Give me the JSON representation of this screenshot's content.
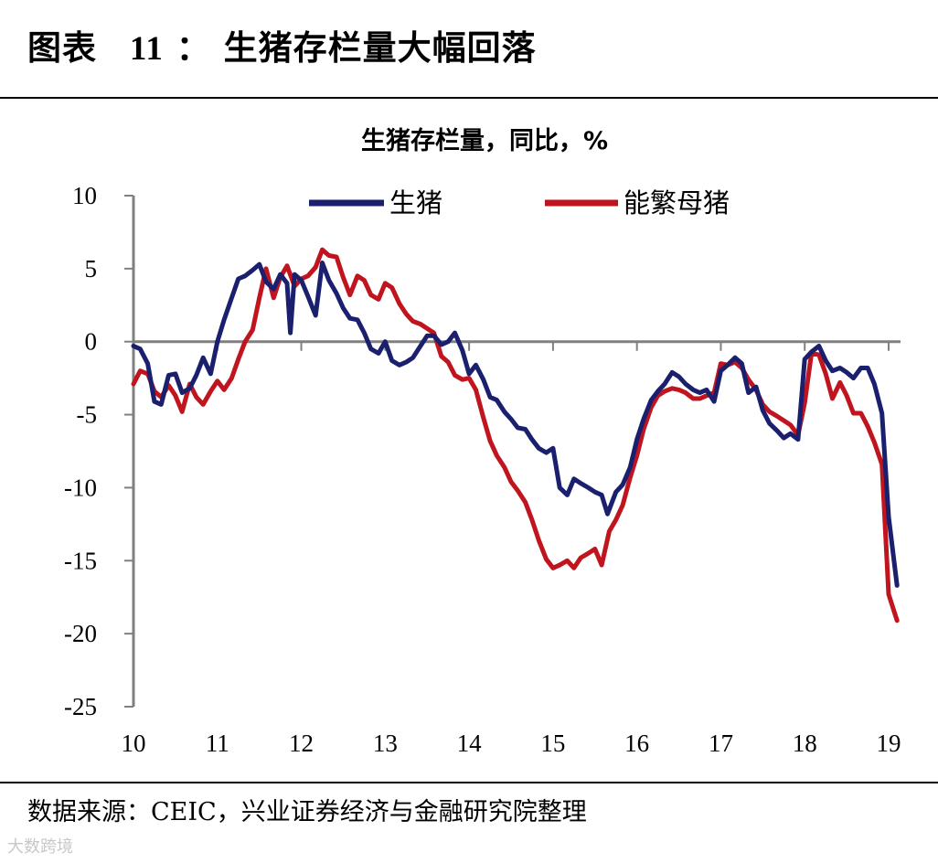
{
  "header": {
    "title_prefix": "图表",
    "title_number": "11",
    "title_sep": "：",
    "title_text": "生猪存栏量大幅回落"
  },
  "footer": {
    "source": "数据来源：CEIC，兴业证券经济与金融研究院整理",
    "watermark": "大数跨境"
  },
  "chart_data": {
    "type": "line",
    "title": "生猪存栏量，同比，%",
    "xlabel": "",
    "ylabel": "",
    "ylim": [
      -25,
      10
    ],
    "yticks": [
      10,
      5,
      0,
      -5,
      -10,
      -15,
      -20,
      -25
    ],
    "xlim": [
      10,
      19.1
    ],
    "xticks": [
      10,
      11,
      12,
      13,
      14,
      15,
      16,
      17,
      18,
      19
    ],
    "xtick_labels": [
      "10",
      "11",
      "12",
      "13",
      "14",
      "15",
      "16",
      "17",
      "18",
      "19"
    ],
    "legend": {
      "position": "top"
    },
    "series": [
      {
        "name": "生猪",
        "color": "#1a1f6e",
        "points": [
          [
            10.0,
            -0.3
          ],
          [
            10.08,
            -0.5
          ],
          [
            10.17,
            -1.5
          ],
          [
            10.25,
            -4.1
          ],
          [
            10.33,
            -4.3
          ],
          [
            10.42,
            -2.3
          ],
          [
            10.5,
            -2.2
          ],
          [
            10.58,
            -3.5
          ],
          [
            10.67,
            -3.2
          ],
          [
            10.75,
            -2.3
          ],
          [
            10.83,
            -1.1
          ],
          [
            10.92,
            -2.2
          ],
          [
            11.0,
            0.0
          ],
          [
            11.08,
            1.5
          ],
          [
            11.17,
            3.0
          ],
          [
            11.25,
            4.3
          ],
          [
            11.33,
            4.5
          ],
          [
            11.42,
            4.9
          ],
          [
            11.5,
            5.3
          ],
          [
            11.58,
            4.1
          ],
          [
            11.67,
            3.6
          ],
          [
            11.75,
            4.6
          ],
          [
            11.83,
            4.0
          ],
          [
            11.87,
            0.6
          ],
          [
            11.92,
            4.6
          ],
          [
            12.0,
            4.2
          ],
          [
            12.08,
            3.1
          ],
          [
            12.17,
            1.8
          ],
          [
            12.25,
            5.4
          ],
          [
            12.33,
            4.2
          ],
          [
            12.42,
            3.3
          ],
          [
            12.5,
            2.3
          ],
          [
            12.58,
            1.6
          ],
          [
            12.67,
            1.5
          ],
          [
            12.75,
            0.6
          ],
          [
            12.83,
            -0.5
          ],
          [
            12.92,
            -0.8
          ],
          [
            13.0,
            0.0
          ],
          [
            13.08,
            -1.3
          ],
          [
            13.17,
            -1.6
          ],
          [
            13.25,
            -1.4
          ],
          [
            13.33,
            -1.1
          ],
          [
            13.42,
            -0.3
          ],
          [
            13.5,
            0.4
          ],
          [
            13.58,
            0.4
          ],
          [
            13.67,
            -0.2
          ],
          [
            13.75,
            0.0
          ],
          [
            13.83,
            0.6
          ],
          [
            13.92,
            -0.6
          ],
          [
            14.0,
            -2.2
          ],
          [
            14.08,
            -1.6
          ],
          [
            14.17,
            -2.6
          ],
          [
            14.25,
            -3.8
          ],
          [
            14.33,
            -4.0
          ],
          [
            14.42,
            -4.8
          ],
          [
            14.5,
            -5.3
          ],
          [
            14.58,
            -5.9
          ],
          [
            14.67,
            -6.0
          ],
          [
            14.75,
            -6.7
          ],
          [
            14.83,
            -7.3
          ],
          [
            14.92,
            -7.6
          ],
          [
            15.0,
            -7.3
          ],
          [
            15.08,
            -10.0
          ],
          [
            15.17,
            -10.5
          ],
          [
            15.25,
            -9.4
          ],
          [
            15.33,
            -9.7
          ],
          [
            15.42,
            -10.0
          ],
          [
            15.5,
            -10.3
          ],
          [
            15.58,
            -10.5
          ],
          [
            15.65,
            -11.8
          ],
          [
            15.75,
            -10.3
          ],
          [
            15.83,
            -9.8
          ],
          [
            15.92,
            -8.6
          ],
          [
            16.0,
            -6.7
          ],
          [
            16.08,
            -5.3
          ],
          [
            16.17,
            -4.0
          ],
          [
            16.25,
            -3.4
          ],
          [
            16.33,
            -2.9
          ],
          [
            16.42,
            -2.1
          ],
          [
            16.5,
            -2.4
          ],
          [
            16.58,
            -2.9
          ],
          [
            16.67,
            -3.3
          ],
          [
            16.75,
            -3.5
          ],
          [
            16.83,
            -3.3
          ],
          [
            16.92,
            -4.1
          ],
          [
            17.0,
            -2.0
          ],
          [
            17.08,
            -1.6
          ],
          [
            17.17,
            -1.1
          ],
          [
            17.25,
            -1.5
          ],
          [
            17.33,
            -3.5
          ],
          [
            17.42,
            -3.1
          ],
          [
            17.5,
            -4.7
          ],
          [
            17.58,
            -5.6
          ],
          [
            17.67,
            -6.1
          ],
          [
            17.75,
            -6.6
          ],
          [
            17.83,
            -6.3
          ],
          [
            17.92,
            -6.7
          ],
          [
            18.0,
            -1.2
          ],
          [
            18.08,
            -0.7
          ],
          [
            18.17,
            -0.3
          ],
          [
            18.25,
            -1.3
          ],
          [
            18.33,
            -2.0
          ],
          [
            18.42,
            -1.8
          ],
          [
            18.5,
            -2.1
          ],
          [
            18.58,
            -2.5
          ],
          [
            18.67,
            -1.8
          ],
          [
            18.75,
            -1.8
          ],
          [
            18.83,
            -2.9
          ],
          [
            18.92,
            -4.9
          ],
          [
            19.0,
            -12.0
          ],
          [
            19.1,
            -16.7
          ]
        ]
      },
      {
        "name": "能繁母猪",
        "color": "#c0141f",
        "points": [
          [
            10.0,
            -2.9
          ],
          [
            10.08,
            -2.0
          ],
          [
            10.17,
            -2.2
          ],
          [
            10.25,
            -3.4
          ],
          [
            10.33,
            -3.8
          ],
          [
            10.42,
            -3.0
          ],
          [
            10.5,
            -3.7
          ],
          [
            10.58,
            -4.8
          ],
          [
            10.67,
            -2.9
          ],
          [
            10.75,
            -3.8
          ],
          [
            10.83,
            -4.3
          ],
          [
            10.92,
            -3.4
          ],
          [
            11.0,
            -2.7
          ],
          [
            11.08,
            -3.3
          ],
          [
            11.17,
            -2.5
          ],
          [
            11.25,
            -1.2
          ],
          [
            11.33,
            0.0
          ],
          [
            11.42,
            0.8
          ],
          [
            11.5,
            3.0
          ],
          [
            11.58,
            5.0
          ],
          [
            11.67,
            3.0
          ],
          [
            11.75,
            4.4
          ],
          [
            11.83,
            5.2
          ],
          [
            11.92,
            3.8
          ],
          [
            12.0,
            4.3
          ],
          [
            12.08,
            4.5
          ],
          [
            12.17,
            5.1
          ],
          [
            12.25,
            6.3
          ],
          [
            12.33,
            5.9
          ],
          [
            12.42,
            5.8
          ],
          [
            12.5,
            4.4
          ],
          [
            12.58,
            3.2
          ],
          [
            12.67,
            4.5
          ],
          [
            12.75,
            4.2
          ],
          [
            12.83,
            3.2
          ],
          [
            12.92,
            2.9
          ],
          [
            13.0,
            4.0
          ],
          [
            13.08,
            3.7
          ],
          [
            13.17,
            2.6
          ],
          [
            13.25,
            1.9
          ],
          [
            13.33,
            1.4
          ],
          [
            13.42,
            1.2
          ],
          [
            13.5,
            0.9
          ],
          [
            13.58,
            0.6
          ],
          [
            13.67,
            -1.0
          ],
          [
            13.75,
            -1.4
          ],
          [
            13.83,
            -2.3
          ],
          [
            13.92,
            -2.6
          ],
          [
            14.0,
            -2.5
          ],
          [
            14.08,
            -3.3
          ],
          [
            14.17,
            -5.2
          ],
          [
            14.25,
            -6.8
          ],
          [
            14.33,
            -7.8
          ],
          [
            14.42,
            -8.6
          ],
          [
            14.5,
            -9.6
          ],
          [
            14.58,
            -10.2
          ],
          [
            14.67,
            -11.0
          ],
          [
            14.75,
            -12.2
          ],
          [
            14.83,
            -13.6
          ],
          [
            14.92,
            -14.9
          ],
          [
            15.0,
            -15.5
          ],
          [
            15.08,
            -15.3
          ],
          [
            15.17,
            -15.0
          ],
          [
            15.25,
            -15.5
          ],
          [
            15.33,
            -14.8
          ],
          [
            15.42,
            -14.5
          ],
          [
            15.5,
            -14.2
          ],
          [
            15.58,
            -15.3
          ],
          [
            15.67,
            -13.0
          ],
          [
            15.75,
            -12.2
          ],
          [
            15.83,
            -11.2
          ],
          [
            15.92,
            -9.3
          ],
          [
            16.0,
            -7.8
          ],
          [
            16.08,
            -6.0
          ],
          [
            16.17,
            -4.5
          ],
          [
            16.25,
            -3.7
          ],
          [
            16.33,
            -3.4
          ],
          [
            16.42,
            -3.2
          ],
          [
            16.5,
            -3.3
          ],
          [
            16.58,
            -3.5
          ],
          [
            16.67,
            -3.9
          ],
          [
            16.75,
            -3.9
          ],
          [
            16.83,
            -3.7
          ],
          [
            16.92,
            -3.5
          ],
          [
            17.0,
            -1.5
          ],
          [
            17.08,
            -1.6
          ],
          [
            17.17,
            -1.4
          ],
          [
            17.25,
            -1.8
          ],
          [
            17.33,
            -2.6
          ],
          [
            17.42,
            -3.3
          ],
          [
            17.5,
            -4.3
          ],
          [
            17.58,
            -4.8
          ],
          [
            17.67,
            -5.1
          ],
          [
            17.75,
            -5.4
          ],
          [
            17.83,
            -5.7
          ],
          [
            17.92,
            -6.4
          ],
          [
            18.0,
            -4.2
          ],
          [
            18.08,
            -0.8
          ],
          [
            18.17,
            -0.9
          ],
          [
            18.25,
            -2.2
          ],
          [
            18.33,
            -3.9
          ],
          [
            18.42,
            -2.8
          ],
          [
            18.5,
            -3.7
          ],
          [
            18.58,
            -4.9
          ],
          [
            18.67,
            -4.9
          ],
          [
            18.75,
            -5.8
          ],
          [
            18.83,
            -6.9
          ],
          [
            18.92,
            -8.4
          ],
          [
            19.0,
            -17.3
          ],
          [
            19.1,
            -19.1
          ]
        ]
      }
    ]
  }
}
